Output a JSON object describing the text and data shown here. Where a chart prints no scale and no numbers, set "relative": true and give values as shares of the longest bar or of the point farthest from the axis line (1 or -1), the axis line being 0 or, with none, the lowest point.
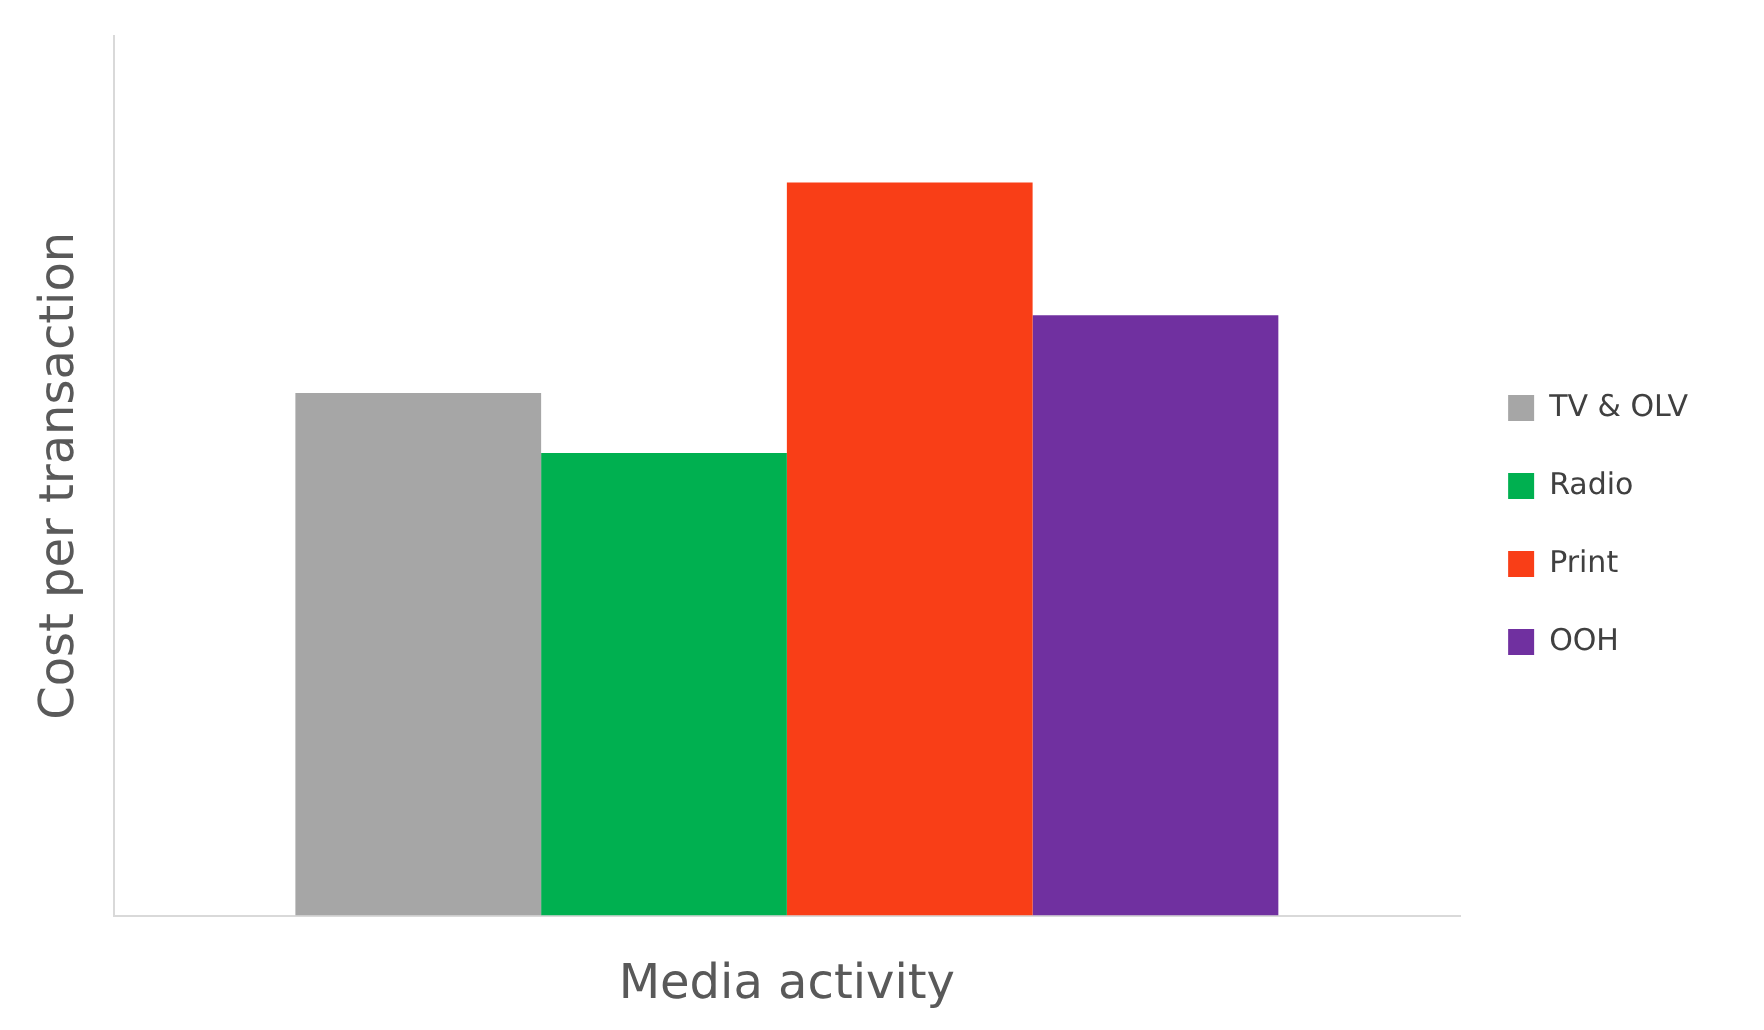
{
  "chart_data": {
    "type": "bar",
    "relative": true,
    "xlabel": "Media activity",
    "ylabel": "Cost per transaction",
    "categories": [
      null
    ],
    "series": [
      {
        "name": "TV & OLV",
        "color": "#a6a6a6",
        "values": [
          0.713
        ]
      },
      {
        "name": "Radio",
        "color": "#00b050",
        "values": [
          0.631
        ]
      },
      {
        "name": "Print",
        "color": "#f93e17",
        "values": [
          1
        ]
      },
      {
        "name": "OOH",
        "color": "#7030a0",
        "values": [
          0.819
        ]
      }
    ],
    "legend": "right",
    "grid": false
  }
}
